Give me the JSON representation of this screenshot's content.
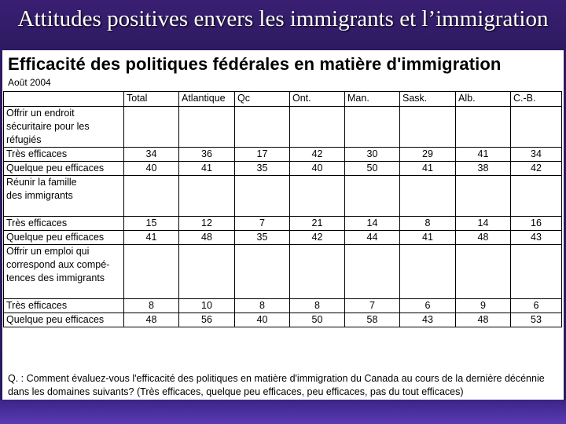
{
  "slide": {
    "title": "Attitudes positives envers les immigrants et l’immigration"
  },
  "table": {
    "title": "Efficacité des politiques fédérales en matière d'immigration",
    "date": "Août 2004",
    "columns": [
      "Total",
      "Atlantique",
      "Qc",
      "Ont.",
      "Man.",
      "Sask.",
      "Alb.",
      "C.-B."
    ],
    "sections": [
      {
        "lines": [
          "Offrir un endroit",
          "sécuritaire pour les",
          "réfugiés"
        ],
        "rows": [
          {
            "label": "Très efficaces",
            "values": [
              "34",
              "36",
              "17",
              "42",
              "30",
              "29",
              "41",
              "34"
            ]
          },
          {
            "label": "Quelque peu efficaces",
            "values": [
              "40",
              "41",
              "35",
              "40",
              "50",
              "41",
              "38",
              "42"
            ]
          }
        ]
      },
      {
        "lines": [
          "Réunir la famille",
          "des immigrants"
        ],
        "rows": [
          {
            "label": "Très efficaces",
            "values": [
              "15",
              "12",
              "7",
              "21",
              "14",
              "8",
              "14",
              "16"
            ]
          },
          {
            "label": "Quelque peu efficaces",
            "values": [
              "41",
              "48",
              "35",
              "42",
              "44",
              "41",
              "48",
              "43"
            ]
          }
        ]
      },
      {
        "lines": [
          "Offrir un emploi qui",
          "correspond aux compé-",
          "tences des immigrants"
        ],
        "rows": [
          {
            "label": "Très efficaces",
            "values": [
              "8",
              "10",
              "8",
              "8",
              "7",
              "6",
              "9",
              "6"
            ]
          },
          {
            "label": "Quelque peu efficaces",
            "values": [
              "48",
              "56",
              "40",
              "50",
              "58",
              "43",
              "48",
              "53"
            ]
          }
        ]
      }
    ],
    "question": "Q. : Comment évaluez-vous l'efficacité des politiques en matière d'immigration du Canada au cours de la dernière décénnie dans les domaines suivants? (Très efficaces, quelque peu efficaces, peu efficaces, pas du tout efficaces)"
  }
}
